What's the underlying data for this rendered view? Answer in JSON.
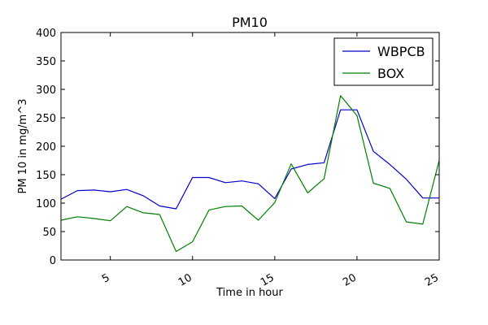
{
  "chart_data": {
    "type": "line",
    "title": "PM10",
    "xlabel": "Time in hour",
    "ylabel": "PM 10 in mg/m^3",
    "xlim": [
      2,
      25
    ],
    "ylim": [
      0,
      400
    ],
    "x_ticks": [
      5,
      10,
      15,
      20,
      25
    ],
    "y_ticks": [
      0,
      50,
      100,
      150,
      200,
      250,
      300,
      350,
      400
    ],
    "legend_position": "top-right",
    "grid": false,
    "x": [
      2,
      3,
      4,
      5,
      6,
      7,
      8,
      9,
      10,
      11,
      12,
      13,
      14,
      15,
      16,
      17,
      18,
      19,
      20,
      21,
      22,
      23,
      24,
      25
    ],
    "series": [
      {
        "name": "WBPCB",
        "color": "#0000cc",
        "values": [
          107,
          122,
          123,
          120,
          124,
          113,
          95,
          90,
          145,
          145,
          136,
          139,
          134,
          108,
          160,
          168,
          171,
          264,
          264,
          191,
          168,
          142,
          109,
          109
        ]
      },
      {
        "name": "BOX",
        "color": "#007f00",
        "values": [
          70,
          76,
          73,
          69,
          94,
          83,
          80,
          15,
          32,
          88,
          94,
          95,
          70,
          101,
          169,
          118,
          143,
          289,
          254,
          135,
          126,
          67,
          63,
          175
        ]
      }
    ]
  }
}
